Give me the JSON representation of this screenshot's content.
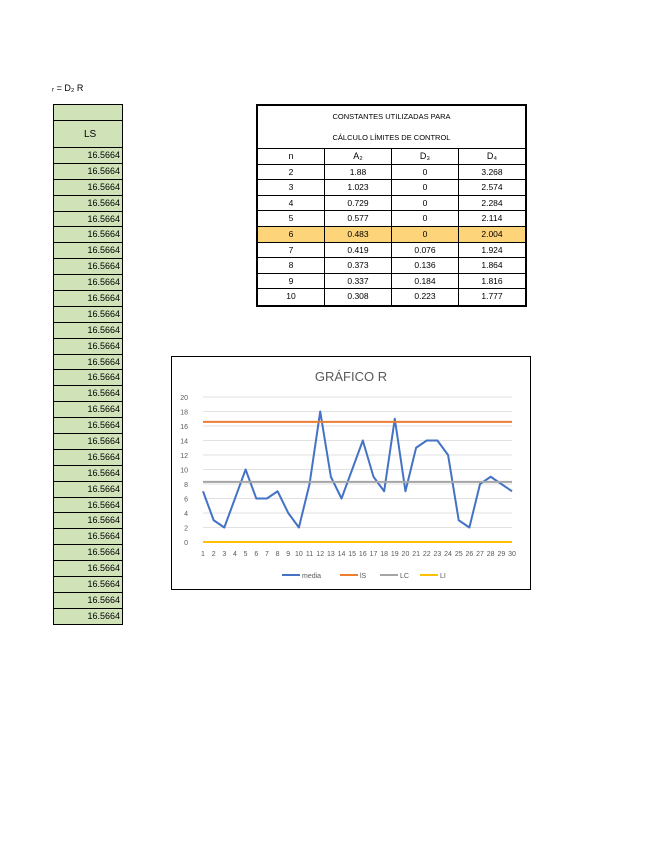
{
  "formula": "ᵣ = D₂ R",
  "ls_column": {
    "header": "LS",
    "values": [
      "16.5664",
      "16.5664",
      "16.5664",
      "16.5664",
      "16.5664",
      "16.5664",
      "16.5664",
      "16.5664",
      "16.5664",
      "16.5664",
      "16.5664",
      "16.5664",
      "16.5664",
      "16.5664",
      "16.5664",
      "16.5664",
      "16.5664",
      "16.5664",
      "16.5664",
      "16.5664",
      "16.5664",
      "16.5664",
      "16.5664",
      "16.5664",
      "16.5664",
      "16.5664",
      "16.5664",
      "16.5664",
      "16.5664",
      "16.5664"
    ]
  },
  "constants_table": {
    "title_line1": "CONSTANTES UTILIZADAS PARA",
    "title_line2": "CÁLCULO LÍMITES DE CONTROL",
    "headers": [
      "n",
      "A₂",
      "D₃",
      "D₄"
    ],
    "rows": [
      [
        "2",
        "1.88",
        "0",
        "3.268"
      ],
      [
        "3",
        "1.023",
        "0",
        "2.574"
      ],
      [
        "4",
        "0.729",
        "0",
        "2.284"
      ],
      [
        "5",
        "0.577",
        "0",
        "2.114"
      ],
      [
        "6",
        "0.483",
        "0",
        "2.004"
      ],
      [
        "7",
        "0.419",
        "0.076",
        "1.924"
      ],
      [
        "8",
        "0.373",
        "0.136",
        "1.864"
      ],
      [
        "9",
        "0.337",
        "0.184",
        "1.816"
      ],
      [
        "10",
        "0.308",
        "0.223",
        "1.777"
      ]
    ],
    "highlighted_row_index": 4,
    "highlight_color": "#fdd47a"
  },
  "chart_data": {
    "type": "line",
    "title": "GRÁFICO R",
    "xlabel": "",
    "ylabel": "",
    "categories": [
      1,
      2,
      3,
      4,
      5,
      6,
      7,
      8,
      9,
      10,
      11,
      12,
      13,
      14,
      15,
      16,
      17,
      18,
      19,
      20,
      21,
      22,
      23,
      24,
      25,
      26,
      27,
      28,
      29,
      30
    ],
    "ylim": [
      0,
      20
    ],
    "yticks": [
      0,
      2,
      4,
      6,
      8,
      10,
      12,
      14,
      16,
      18,
      20
    ],
    "grid": true,
    "legend_position": "bottom",
    "series": [
      {
        "name": "media",
        "color": "#4472c4",
        "values": [
          7,
          3,
          2,
          6,
          10,
          6,
          6,
          7,
          4,
          2,
          8,
          18,
          9,
          6,
          10,
          14,
          9,
          7,
          17,
          7,
          13,
          14,
          14,
          12,
          3,
          2,
          8,
          9,
          8,
          7
        ]
      },
      {
        "name": "lS",
        "color": "#ed7d31",
        "values": [
          16.5664,
          16.5664,
          16.5664,
          16.5664,
          16.5664,
          16.5664,
          16.5664,
          16.5664,
          16.5664,
          16.5664,
          16.5664,
          16.5664,
          16.5664,
          16.5664,
          16.5664,
          16.5664,
          16.5664,
          16.5664,
          16.5664,
          16.5664,
          16.5664,
          16.5664,
          16.5664,
          16.5664,
          16.5664,
          16.5664,
          16.5664,
          16.5664,
          16.5664,
          16.5664
        ]
      },
      {
        "name": "LC",
        "color": "#a5a5a5",
        "values": [
          8.3,
          8.3,
          8.3,
          8.3,
          8.3,
          8.3,
          8.3,
          8.3,
          8.3,
          8.3,
          8.3,
          8.3,
          8.3,
          8.3,
          8.3,
          8.3,
          8.3,
          8.3,
          8.3,
          8.3,
          8.3,
          8.3,
          8.3,
          8.3,
          8.3,
          8.3,
          8.3,
          8.3,
          8.3,
          8.3
        ]
      },
      {
        "name": "LI",
        "color": "#ffc000",
        "values": [
          0,
          0,
          0,
          0,
          0,
          0,
          0,
          0,
          0,
          0,
          0,
          0,
          0,
          0,
          0,
          0,
          0,
          0,
          0,
          0,
          0,
          0,
          0,
          0,
          0,
          0,
          0,
          0,
          0,
          0
        ]
      }
    ]
  }
}
